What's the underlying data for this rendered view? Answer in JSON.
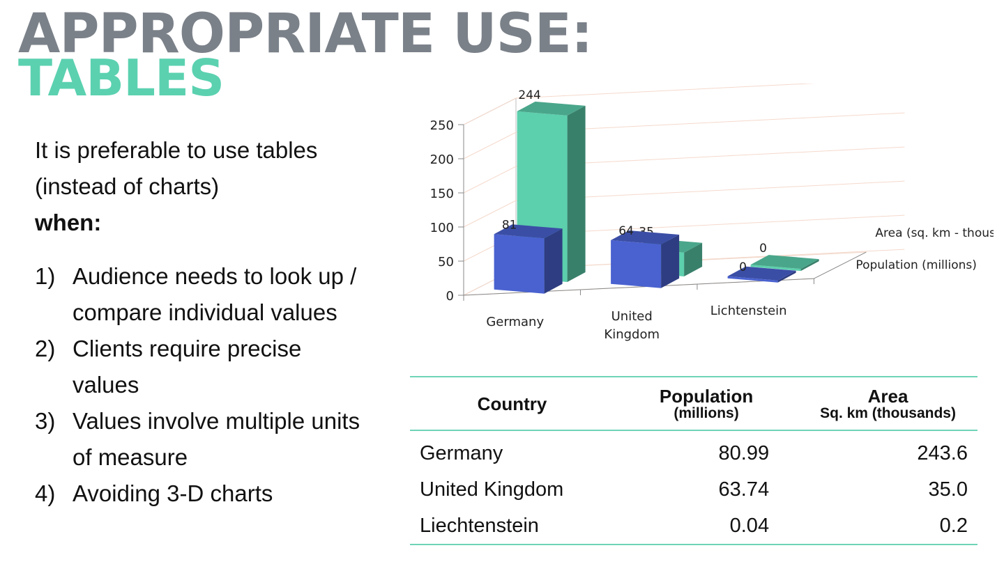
{
  "slide": {
    "title_line1": "APPROPRIATE USE:",
    "title_line2": "TABLES",
    "intro": "It is preferable to use tables (instead of charts)",
    "intro_bold": "when:",
    "reasons": [
      {
        "num": "1)",
        "text": "Audience needs to look up / compare individual values"
      },
      {
        "num": "2)",
        "text": "Clients require precise values"
      },
      {
        "num": "3)",
        "text": "Values involve multiple units of measure"
      },
      {
        "num": "4)",
        "text": "Avoiding 3-D charts"
      }
    ]
  },
  "chart_data": {
    "type": "bar",
    "style": "3d-clustered-columns",
    "categories": [
      "Germany",
      "United Kingdom",
      "Lichtenstein"
    ],
    "category_labels": [
      [
        "Germany"
      ],
      [
        "United",
        "Kingdom"
      ],
      [
        "Lichtenstein"
      ]
    ],
    "series": [
      {
        "name": "Population (millions)",
        "values": [
          81,
          64,
          0
        ],
        "labels": [
          "81",
          "64",
          "0"
        ],
        "color": "#4a62d0"
      },
      {
        "name": "Area (sq. km - thousands)",
        "values": [
          244,
          35,
          0
        ],
        "labels": [
          "244",
          "35",
          "0"
        ],
        "color": "#5ccfac"
      }
    ],
    "yticks": [
      "0",
      "50",
      "100",
      "150",
      "200",
      "250"
    ],
    "ylim": [
      0,
      250
    ],
    "grid": true
  },
  "table": {
    "headers": [
      {
        "main": "Country",
        "sub": ""
      },
      {
        "main": "Population",
        "sub": "(millions)"
      },
      {
        "main": "Area",
        "sub": "Sq. km (thousands)"
      }
    ],
    "rows": [
      [
        "Germany",
        "80.99",
        "243.6"
      ],
      [
        "United Kingdom",
        "63.74",
        "35.0"
      ],
      [
        "Liechtenstein",
        "0.04",
        "0.2"
      ]
    ],
    "rule_color": "#6fd4b7"
  }
}
